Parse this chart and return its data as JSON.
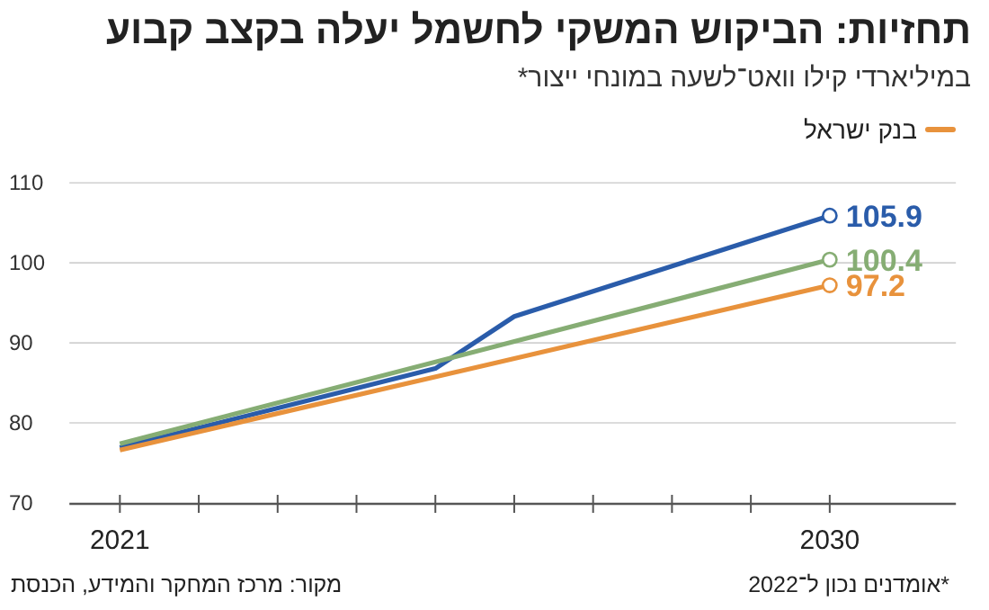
{
  "chart_data": {
    "type": "line",
    "title": "תחזיות: הביקוש המשקי לחשמל יעלה בקצב קבוע",
    "subtitle": "במיליארדי קילו וואט־לשעה במונחי ייצור*",
    "series": [
      {
        "color": "#2a5caa",
        "x": [
          2021,
          2025,
          2026,
          2030
        ],
        "values": [
          76.9,
          86.8,
          93.3,
          105.9
        ],
        "value_labels": [
          null,
          null,
          null,
          "105.9"
        ]
      },
      {
        "color": "#86ad74",
        "x": [
          2021,
          2030
        ],
        "values": [
          77.4,
          100.4
        ],
        "value_labels": [
          null,
          "100.4"
        ]
      },
      {
        "name": "בנק ישראל",
        "color": "#e8923c",
        "x": [
          2021,
          2030
        ],
        "values": [
          76.6,
          97.2
        ],
        "value_labels": [
          null,
          "97.2"
        ]
      }
    ],
    "xlim": [
      2020.36,
      2031.6
    ],
    "xticks": [
      2021,
      {
        "value": 2022,
        "label": null
      },
      {
        "value": 2023,
        "label": null
      },
      {
        "value": 2024,
        "label": null
      },
      {
        "value": 2025,
        "label": null
      },
      {
        "value": 2026,
        "label": null
      },
      {
        "value": 2027,
        "label": null
      },
      {
        "value": 2028,
        "label": null
      },
      {
        "value": 2029,
        "label": null
      },
      2030
    ],
    "ylim": [
      70,
      110
    ],
    "yticks": [
      70,
      80,
      90,
      100,
      110
    ],
    "grid": "y",
    "legend": "top",
    "line_style": "solid",
    "annotations": [
      "*אומדנים נכון ל־2022",
      "מקור: מרכז המחקר והמידע, הכנסת"
    ]
  }
}
